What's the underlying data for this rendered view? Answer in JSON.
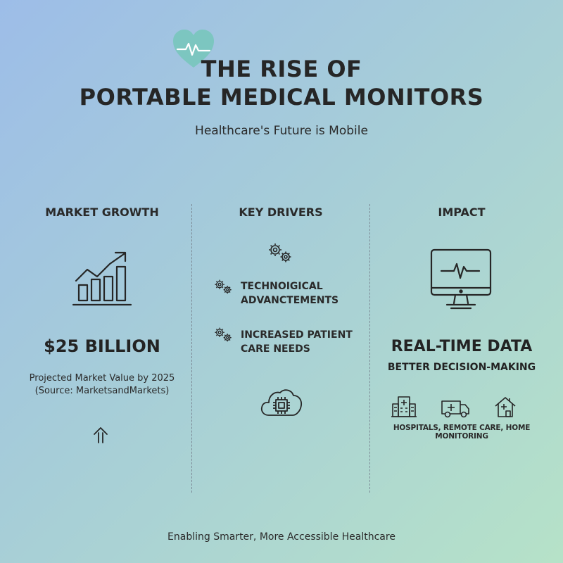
{
  "header": {
    "title_line1": "THE RISE OF",
    "title_line2": "PORTABLE MEDICAL MONITORS",
    "subtitle": "Healthcare's Future is Mobile",
    "logo_icon": "heart-pulse-icon"
  },
  "columns": {
    "market": {
      "heading": "MARKET GROWTH",
      "icon": "growth-chart-icon",
      "value": "$25 BILLION",
      "description_line1": "Projected Market Value by 2025",
      "description_line2": "(Source: MarketsandMarkets)",
      "arrow_icon": "up-arrow-icon"
    },
    "drivers": {
      "heading": "KEY DRIVERS",
      "top_icon": "gears-icon",
      "items": [
        {
          "icon": "gears-icon",
          "line1": "TECHNOIGICAL",
          "line2": "ADVANCTEMENTS"
        },
        {
          "icon": "gears-icon",
          "line1": "INCREASED PATIENT",
          "line2": "CARE NEEDS"
        }
      ],
      "bottom_icon": "cloud-chip-icon"
    },
    "impact": {
      "heading": "IMPACT",
      "icon": "monitor-heartbeat-icon",
      "headline": "REAL-TIME DATA",
      "subheadline": "BETTER DECISION-MAKING",
      "settings_icons": [
        "hospital-icon",
        "ambulance-icon",
        "home-care-icon"
      ],
      "settings_label": "HOSPITALS, REMOTE CARE, HOME MONITORING"
    }
  },
  "footer": {
    "tagline": "Enabling Smarter, More Accessible Healthcare"
  },
  "colors": {
    "heart": "#7cc6c0",
    "ink": "#262626",
    "divider": "#7c8a96"
  }
}
